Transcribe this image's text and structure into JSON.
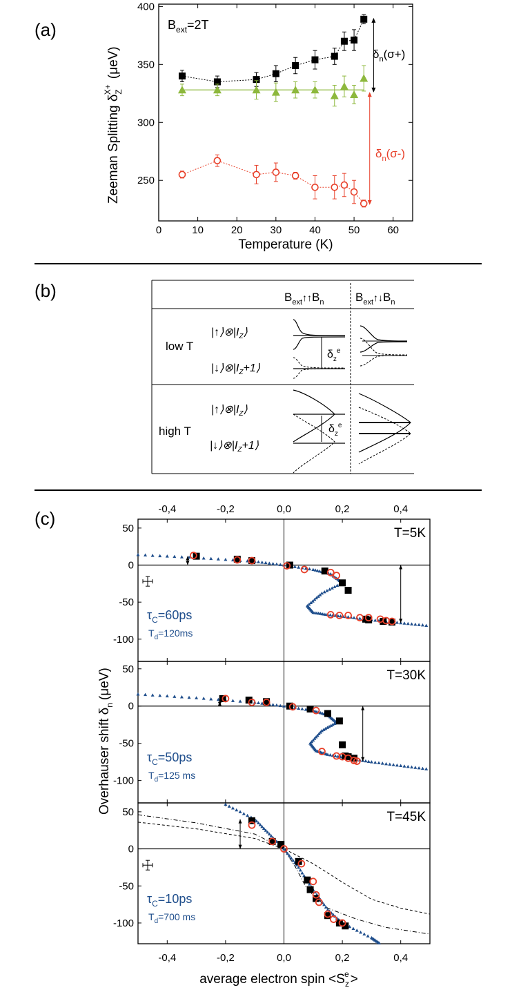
{
  "panel_labels": {
    "a": "(a)",
    "b": "(b)",
    "c": "(c)"
  },
  "colors": {
    "black": "#000000",
    "green": "#8db83c",
    "red": "#e8402a",
    "blue": "#1f4e8c"
  },
  "chart_data": [
    {
      "type": "scatter",
      "id": "a",
      "ylabel": "Zeeman Splitting δ",
      "ylabel_sub": "Z",
      "ylabel_sup": "X+",
      "ylabel_unit": "(μeV)",
      "xlabel": "Temperature (K)",
      "xlim": [
        0,
        65
      ],
      "ylim": [
        215,
        402
      ],
      "xticks": [
        "0",
        "10",
        "20",
        "30",
        "40",
        "50",
        "60"
      ],
      "yticks": [
        "250",
        "300",
        "350",
        "400"
      ],
      "annotation_bext": "B",
      "annotation_bext_sub": "ext",
      "annotation_bext_val": "=2T",
      "delta_plus_label": "δ",
      "delta_plus_sub": "n",
      "delta_plus_val": "(σ+)",
      "delta_minus_label": "δ",
      "delta_minus_sub": "n",
      "delta_minus_val": "(σ-)",
      "series": [
        {
          "name": "sigma+",
          "marker": "square",
          "color": "#000000",
          "x": [
            6,
            15,
            25,
            30,
            35,
            40,
            45,
            47.5,
            50,
            52.5
          ],
          "y": [
            340,
            335,
            337,
            342,
            349,
            354,
            357,
            370,
            371,
            389
          ],
          "err": [
            5,
            5,
            6,
            7,
            7,
            8,
            7,
            8,
            9,
            4
          ]
        },
        {
          "name": "sigma0",
          "marker": "triangle",
          "color": "#8db83c",
          "x": [
            6,
            15,
            25,
            30,
            35,
            40,
            45,
            47.5,
            50,
            52.5
          ],
          "y": [
            328,
            328,
            328,
            326,
            328,
            328,
            323,
            331,
            324,
            338
          ],
          "err": [
            5,
            5,
            8,
            8,
            7,
            7,
            9,
            9,
            8,
            11
          ]
        },
        {
          "name": "sigma-",
          "marker": "circle",
          "color": "#e8402a",
          "x": [
            6,
            15,
            25,
            30,
            35,
            40,
            45,
            47.5,
            50,
            52.5
          ],
          "y": [
            255,
            267,
            255,
            257,
            254,
            244,
            244,
            246,
            240,
            230
          ],
          "err": [
            3,
            5,
            8,
            8,
            3,
            10,
            10,
            10,
            10,
            3
          ]
        }
      ]
    },
    {
      "type": "scatter",
      "id": "c",
      "ylabel": "Overhauser shift δ",
      "ylabel_sub": "n",
      "ylabel_unit": "(μeV)",
      "xlabel": "average electron spin <S",
      "xlabel_sub": "z",
      "xlabel_sup": "e",
      "xlabel_end": ">",
      "xlim": [
        -0.5,
        0.5
      ],
      "xticks": [
        "-0,4",
        "-0,2",
        "0,0",
        "0,2",
        "0,4"
      ],
      "xtick_values": [
        -0.4,
        -0.2,
        0.0,
        0.2,
        0.4
      ],
      "ytick_values": [
        50,
        0,
        -50,
        -100
      ],
      "yticks": [
        "50",
        "0",
        "-50",
        "-100"
      ],
      "subplots": [
        {
          "T": "T=5K",
          "tau": "τ",
          "tau_sub": "C",
          "tau_val": "=60ps",
          "td": "T",
          "td_sub": "d",
          "td_val": "=120ms",
          "ylim": [
            -130,
            62
          ],
          "squares": {
            "x": [
              -0.3,
              -0.16,
              -0.11,
              0.02,
              0.14,
              0.2,
              0.22,
              0.28,
              0.29,
              0.34,
              0.37
            ],
            "y": [
              12,
              8,
              6,
              0,
              -8,
              -24,
              -34,
              -73,
              -74,
              -76,
              -77
            ]
          },
          "circles": {
            "x": [
              -0.31,
              -0.16,
              -0.11,
              0.01,
              0.07,
              0.16,
              0.18,
              0.16,
              0.19,
              0.22,
              0.26,
              0.29,
              0.33,
              0.35,
              0.37
            ],
            "y": [
              13,
              7,
              6,
              -1,
              -6,
              -10,
              -14,
              -67,
              -68,
              -68,
              -71,
              -71,
              -73,
              -75,
              -76
            ]
          },
          "fit_upper": {
            "x": [
              -0.5,
              -0.3,
              -0.1,
              0.0,
              0.1,
              0.16,
              0.2
            ],
            "y": [
              14,
              10,
              5,
              0,
              -6,
              -12,
              -24
            ]
          },
          "fit_s": {
            "x": [
              0.2,
              0.13,
              0.08,
              0.1,
              0.15,
              0.22,
              0.3,
              0.4,
              0.5
            ],
            "y": [
              -24,
              -38,
              -55,
              -64,
              -67,
              -70,
              -74,
              -78,
              -82
            ]
          },
          "arrows": [
            {
              "x": -0.33,
              "y1": 0,
              "y2": 12
            },
            {
              "x": 0.4,
              "y1": 0,
              "y2": -78
            }
          ],
          "errbar": true
        },
        {
          "T": "T=30K",
          "tau": "τ",
          "tau_sub": "C",
          "tau_val": "=50ps",
          "td": "T",
          "td_sub": "d",
          "td_val": "=125 ms",
          "ylim": [
            -130,
            60
          ],
          "squares": {
            "x": [
              -0.21,
              -0.12,
              -0.06,
              0.02,
              0.09,
              0.15,
              0.19,
              0.2,
              0.21,
              0.22,
              0.24
            ],
            "y": [
              10,
              8,
              6,
              0,
              -4,
              -10,
              -20,
              -52,
              -67,
              -68,
              -70
            ]
          },
          "circles": {
            "x": [
              -0.2,
              -0.11,
              -0.06,
              0.03,
              0.11,
              0.13,
              0.18,
              0.2,
              0.22,
              0.24,
              0.25
            ],
            "y": [
              10,
              5,
              5,
              -1,
              -6,
              -61,
              -67,
              -68,
              -70,
              -73,
              -74
            ]
          },
          "fit_upper": {
            "x": [
              -0.5,
              -0.3,
              -0.1,
              0.0,
              0.1,
              0.15,
              0.18
            ],
            "y": [
              16,
              11,
              5,
              0,
              -6,
              -12,
              -22
            ]
          },
          "fit_s": {
            "x": [
              0.18,
              0.13,
              0.09,
              0.11,
              0.15,
              0.22,
              0.3,
              0.4,
              0.5
            ],
            "y": [
              -22,
              -33,
              -50,
              -60,
              -65,
              -70,
              -75,
              -80,
              -85
            ]
          },
          "arrows": [
            {
              "x": -0.22,
              "y1": 0,
              "y2": 6
            },
            {
              "x": 0.27,
              "y1": 0,
              "y2": -74
            }
          ],
          "errbar": false
        },
        {
          "T": "T=45K",
          "tau": "τ",
          "tau_sub": "C",
          "tau_val": "=10ps",
          "td": "T",
          "td_sub": "d",
          "td_val": "=700 ms",
          "ylim": [
            -128,
            62
          ],
          "squares": {
            "x": [
              -0.11,
              -0.04,
              -0.01,
              0.05,
              0.08,
              0.09,
              0.11,
              0.15,
              0.19,
              0.21
            ],
            "y": [
              38,
              10,
              6,
              -17,
              -42,
              -55,
              -67,
              -90,
              -100,
              -104
            ]
          },
          "circles": {
            "x": [
              -0.11,
              -0.04,
              0.0,
              0.06,
              0.1,
              0.11,
              0.12,
              0.15,
              0.17,
              0.2
            ],
            "y": [
              32,
              10,
              0,
              -20,
              -44,
              -62,
              -72,
              -88,
              -95,
              -100
            ]
          },
          "fit_upper": {
            "x": [
              -0.2,
              -0.1,
              -0.05,
              0.0,
              0.05,
              0.1,
              0.15,
              0.2,
              0.3,
              0.33
            ],
            "y": [
              60,
              40,
              20,
              0,
              -25,
              -55,
              -82,
              -100,
              -120,
              -128
            ]
          },
          "dash1": {
            "x": [
              -0.5,
              -0.3,
              -0.1,
              0.0,
              0.1,
              0.2,
              0.3,
              0.4,
              0.5
            ],
            "y": [
              36,
              27,
              14,
              0,
              -20,
              -45,
              -68,
              -80,
              -88
            ]
          },
          "dash2": {
            "x": [
              -0.5,
              -0.3,
              -0.1,
              0.0,
              0.04,
              0.08,
              0.15,
              0.25,
              0.35,
              0.5
            ],
            "y": [
              46,
              35,
              20,
              0,
              -25,
              -55,
              -80,
              -95,
              -106,
              -115
            ]
          },
          "arrows": [
            {
              "x": -0.15,
              "y1": 0,
              "y2": 40
            }
          ],
          "errbar": true
        }
      ]
    }
  ],
  "diagram_b": {
    "col1": "B",
    "col1_sub": "ext",
    "col1_mid": "↑↑",
    "col1_end": "B",
    "col1_sub2": "n",
    "col2": "B",
    "col2_sub": "ext",
    "col2_mid": "↑↓",
    "col2_end": "B",
    "col2_sub2": "n",
    "rows": [
      {
        "label": "low T",
        "state_up": "|↑⟩⊗|I",
        "state_up_sub": "Z",
        "state_up_end": "⟩",
        "state_down": "|↓⟩⊗|I",
        "state_down_sub": "Z",
        "state_down_end": "+1⟩",
        "delta": "δ",
        "delta_sub": "z",
        "delta_sup": "e"
      },
      {
        "label": "high T",
        "state_up": "|↑⟩⊗|I",
        "state_up_sub": "Z",
        "state_up_end": "⟩",
        "state_down": "|↓⟩⊗|I",
        "state_down_sub": "Z",
        "state_down_end": "+1⟩",
        "delta": "δ",
        "delta_sub": "z",
        "delta_sup": "e"
      }
    ]
  }
}
